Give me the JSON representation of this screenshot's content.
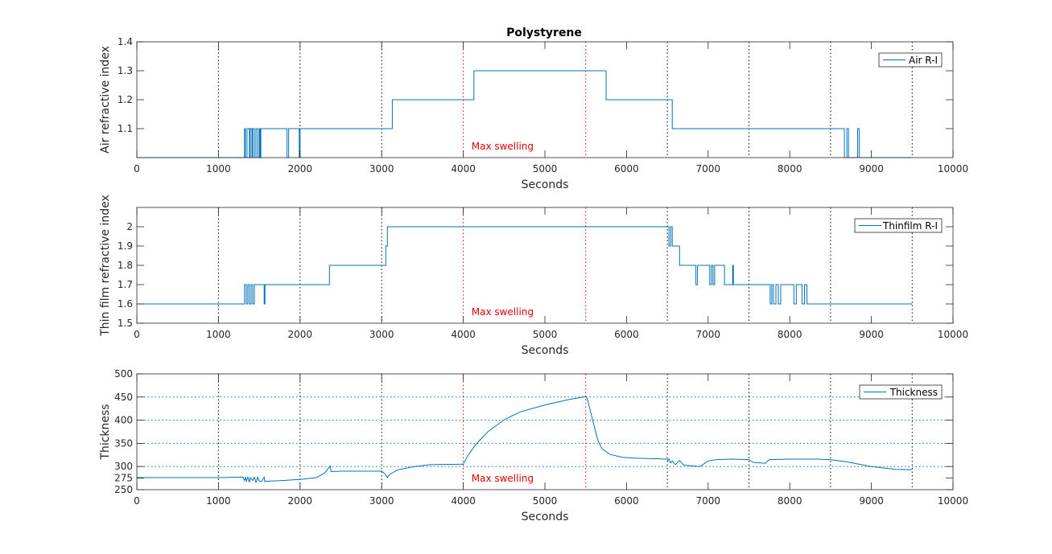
{
  "figure_title": "Polystyrene",
  "colors": {
    "series": "#0072BD",
    "marker": "#E00000",
    "vline": "#000000",
    "axes": "#262626"
  },
  "chart_data": [
    {
      "type": "line",
      "title": "Polystyrene",
      "xlabel": "Seconds",
      "ylabel": "Air refractive index",
      "xlim": [
        0,
        10000
      ],
      "ylim": [
        1.0,
        1.4
      ],
      "xticks": [
        "0",
        "1000",
        "2000",
        "3000",
        "4000",
        "5000",
        "6000",
        "7000",
        "8000",
        "9000",
        "10000"
      ],
      "yticks": [
        1.1,
        1.2,
        1.3,
        1.4
      ],
      "ytick_labels": [
        "1.1",
        "1.2",
        "1.3",
        "1.4"
      ],
      "legend": "top-right",
      "annotation": "Max swelling",
      "vlines": [
        1000,
        2000,
        3000,
        4000,
        5500,
        6500,
        7500,
        8500,
        9500
      ],
      "red_vlines": [
        4000,
        5500
      ],
      "hgrid": [],
      "series": [
        {
          "name": "Air R-I",
          "x": [
            0,
            1320,
            1320,
            1330,
            1330,
            1350,
            1350,
            1380,
            1380,
            1390,
            1390,
            1410,
            1410,
            1420,
            1420,
            1440,
            1440,
            1460,
            1460,
            1480,
            1480,
            1500,
            1500,
            1510,
            1510,
            1520,
            1520,
            1840,
            1840,
            1860,
            1860,
            1990,
            1990,
            2000,
            2000,
            3130,
            3130,
            4130,
            4130,
            5750,
            5750,
            6560,
            6560,
            8670,
            8670,
            8700,
            8700,
            8720,
            8720,
            8830,
            8830,
            8850,
            8850,
            9500
          ],
          "y": [
            1.0,
            1.0,
            1.1,
            1.1,
            1.0,
            1.0,
            1.1,
            1.1,
            1.0,
            1.0,
            1.1,
            1.1,
            1.0,
            1.0,
            1.1,
            1.1,
            1.0,
            1.0,
            1.1,
            1.1,
            1.0,
            1.0,
            1.1,
            1.1,
            1.0,
            1.0,
            1.1,
            1.1,
            1.0,
            1.0,
            1.1,
            1.1,
            1.0,
            1.0,
            1.1,
            1.1,
            1.2,
            1.2,
            1.3,
            1.3,
            1.2,
            1.2,
            1.1,
            1.1,
            1.0,
            1.0,
            1.1,
            1.1,
            1.0,
            1.0,
            1.1,
            1.1,
            1.0,
            1.0
          ]
        }
      ]
    },
    {
      "type": "line",
      "title": "",
      "xlabel": "Seconds",
      "ylabel": "Thin film refractive index",
      "xlim": [
        0,
        10000
      ],
      "ylim": [
        1.5,
        2.1
      ],
      "xticks": [
        "0",
        "1000",
        "2000",
        "3000",
        "4000",
        "5000",
        "6000",
        "7000",
        "8000",
        "9000",
        "10000"
      ],
      "yticks": [
        1.5,
        1.6,
        1.7,
        1.8,
        1.9,
        2.0
      ],
      "ytick_labels": [
        "1.5",
        "1.6",
        "1.7",
        "1.8",
        "1.9",
        "2"
      ],
      "legend": "top-right",
      "annotation": "Max swelling",
      "vlines": [
        1000,
        2000,
        3000,
        4000,
        5500,
        6500,
        7500,
        8500,
        9500
      ],
      "red_vlines": [
        4000,
        5500
      ],
      "hgrid": [],
      "series": [
        {
          "name": "Thinfilm R-I",
          "x": [
            0,
            1320,
            1320,
            1340,
            1340,
            1360,
            1360,
            1380,
            1380,
            1400,
            1400,
            1420,
            1420,
            1440,
            1440,
            1460,
            1460,
            1560,
            1560,
            1570,
            1570,
            2360,
            2360,
            3050,
            3050,
            3070,
            3070,
            3090,
            3090,
            6520,
            6520,
            6540,
            6540,
            6560,
            6560,
            6580,
            6580,
            6600,
            6600,
            6650,
            6650,
            6850,
            6850,
            6870,
            6870,
            7020,
            7020,
            7040,
            7040,
            7060,
            7060,
            7080,
            7080,
            7100,
            7100,
            7200,
            7200,
            7300,
            7300,
            7310,
            7310,
            7760,
            7760,
            7780,
            7780,
            7800,
            7800,
            7830,
            7830,
            7860,
            7860,
            7890,
            7890,
            8050,
            8050,
            8080,
            8080,
            8150,
            8150,
            8180,
            8180,
            8210,
            8210,
            8250,
            8250,
            9500
          ],
          "y": [
            1.6,
            1.6,
            1.7,
            1.7,
            1.6,
            1.6,
            1.7,
            1.7,
            1.6,
            1.6,
            1.7,
            1.7,
            1.6,
            1.6,
            1.7,
            1.7,
            1.7,
            1.7,
            1.6,
            1.6,
            1.7,
            1.7,
            1.8,
            1.8,
            1.9,
            1.9,
            2.0,
            2.0,
            2.0,
            2.0,
            1.9,
            1.9,
            2.0,
            2.0,
            1.9,
            1.9,
            1.9,
            1.9,
            1.9,
            1.9,
            1.8,
            1.8,
            1.7,
            1.7,
            1.8,
            1.8,
            1.7,
            1.7,
            1.8,
            1.8,
            1.7,
            1.7,
            1.8,
            1.8,
            1.8,
            1.8,
            1.7,
            1.7,
            1.8,
            1.8,
            1.7,
            1.7,
            1.6,
            1.6,
            1.7,
            1.7,
            1.6,
            1.6,
            1.7,
            1.7,
            1.6,
            1.6,
            1.7,
            1.7,
            1.6,
            1.6,
            1.7,
            1.7,
            1.6,
            1.6,
            1.7,
            1.7,
            1.6,
            1.6,
            1.6,
            1.6
          ]
        }
      ]
    },
    {
      "type": "line",
      "title": "",
      "xlabel": "Seconds",
      "ylabel": "Thickness",
      "xlim": [
        0,
        10000
      ],
      "ylim": [
        250,
        500
      ],
      "xticks": [
        "0",
        "1000",
        "2000",
        "3000",
        "4000",
        "5000",
        "6000",
        "7000",
        "8000",
        "9000",
        "10000"
      ],
      "yticks": [
        250,
        275,
        300,
        350,
        400,
        450,
        500
      ],
      "ytick_labels": [
        "250",
        "275",
        "300",
        "350",
        "400",
        "450",
        "500"
      ],
      "legend": "top-right",
      "annotation": "Max swelling",
      "vlines": [
        1000,
        2000,
        3000,
        4000,
        5500,
        6500,
        7500,
        8500,
        9500
      ],
      "red_vlines": [
        4000,
        5500
      ],
      "hgrid": [
        300,
        350,
        400,
        450
      ],
      "series": [
        {
          "name": "Thickness",
          "x": [
            0,
            500,
            1000,
            1300,
            1320,
            1330,
            1340,
            1360,
            1380,
            1390,
            1420,
            1440,
            1460,
            1480,
            1500,
            1530,
            1560,
            1570,
            1580,
            1800,
            2000,
            2200,
            2300,
            2370,
            2380,
            2500,
            3000,
            3040,
            3070,
            3100,
            3200,
            3400,
            3600,
            4000,
            4050,
            4150,
            4300,
            4500,
            4700,
            5000,
            5300,
            5500,
            5520,
            5600,
            5650,
            5700,
            5800,
            5950,
            6100,
            6300,
            6500,
            6510,
            6520,
            6540,
            6560,
            6600,
            6650,
            6700,
            6900,
            7000,
            7100,
            7300,
            7500,
            7550,
            7700,
            7750,
            8000,
            8300,
            8500,
            8700,
            9000,
            9300,
            9500
          ],
          "y": [
            276,
            276,
            276,
            277,
            270,
            278,
            268,
            277,
            266,
            276,
            270,
            277,
            266,
            277,
            268,
            268,
            277,
            267,
            268,
            270,
            272,
            276,
            286,
            301,
            289,
            290,
            290,
            284,
            276,
            283,
            293,
            300,
            304,
            305,
            322,
            347,
            375,
            401,
            418,
            433,
            445,
            451,
            446,
            390,
            356,
            338,
            326,
            320,
            318,
            317,
            316,
            313,
            316,
            308,
            312,
            304,
            313,
            303,
            300,
            312,
            315,
            316,
            315,
            309,
            307,
            315,
            316,
            316,
            315,
            310,
            300,
            294,
            293
          ]
        }
      ]
    }
  ]
}
